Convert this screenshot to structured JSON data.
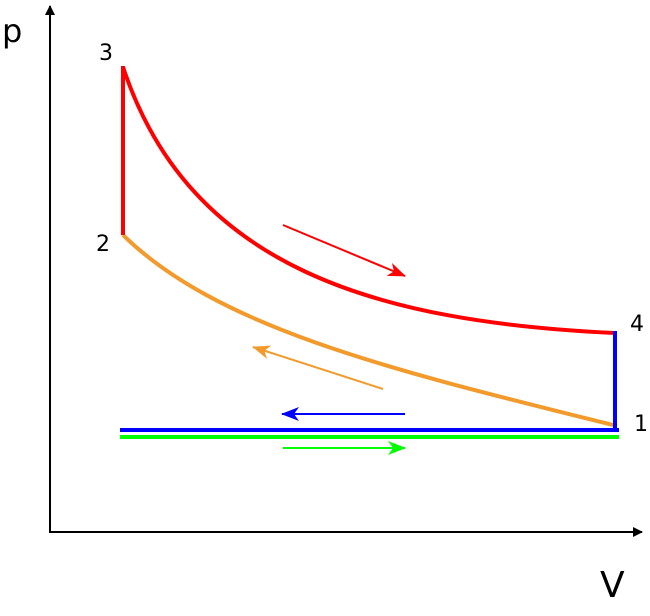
{
  "axes": {
    "y_label": "p",
    "x_label": "V"
  },
  "points": [
    {
      "label": "1"
    },
    {
      "label": "2"
    },
    {
      "label": "3"
    },
    {
      "label": "4"
    }
  ]
}
